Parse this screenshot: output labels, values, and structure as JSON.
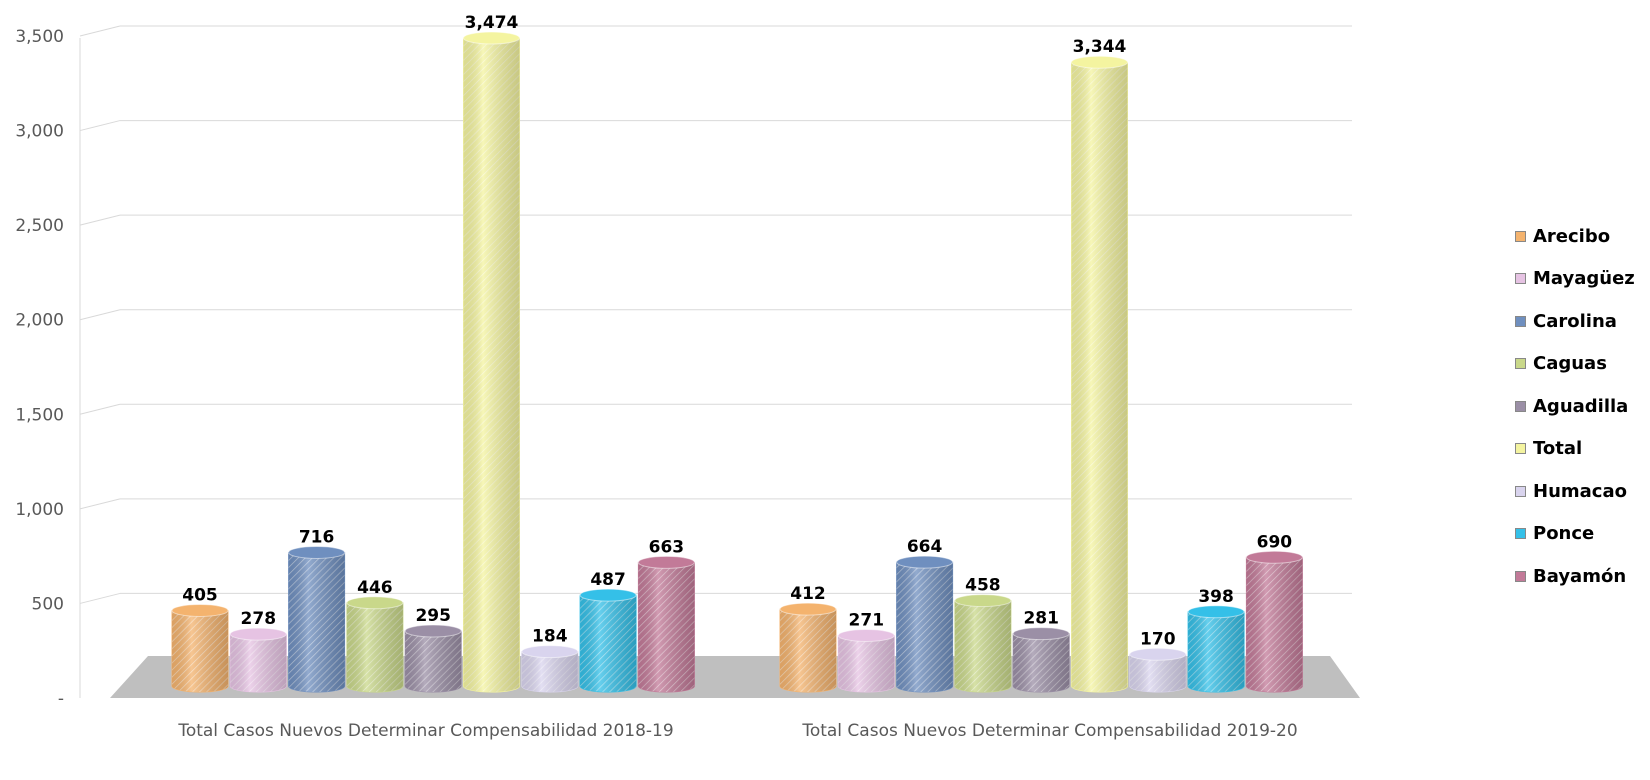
{
  "chart_data": {
    "type": "bar",
    "categories": [
      "Total Casos Nuevos Determinar Compensabilidad 2018-19",
      "Total Casos Nuevos Determinar Compensabilidad 2019-20"
    ],
    "series": [
      {
        "name": "Arecibo",
        "values": [
          405,
          412
        ],
        "color": "#F4B36E"
      },
      {
        "name": "Mayagüez",
        "values": [
          278,
          271
        ],
        "color": "#E6C3E3"
      },
      {
        "name": "Carolina",
        "values": [
          716,
          664
        ],
        "color": "#6F8FBF"
      },
      {
        "name": "Caguas",
        "values": [
          446,
          458
        ],
        "color": "#C9D88A"
      },
      {
        "name": "Aguadilla",
        "values": [
          295,
          281
        ],
        "color": "#9B8FA6"
      },
      {
        "name": "Total",
        "values": [
          3474,
          3344
        ],
        "color": "#F4F4A0"
      },
      {
        "name": "Humacao",
        "values": [
          184,
          170
        ],
        "color": "#D9D4EE"
      },
      {
        "name": "Ponce",
        "values": [
          487,
          398
        ],
        "color": "#34C0E8"
      },
      {
        "name": "Bayamón",
        "values": [
          663,
          690
        ],
        "color": "#C27A98"
      }
    ],
    "data_labels": {
      "Arecibo": [
        "405",
        "412"
      ],
      "Mayagüez": [
        "278",
        "271"
      ],
      "Carolina": [
        "716",
        "664"
      ],
      "Caguas": [
        "446",
        "458"
      ],
      "Aguadilla": [
        "295",
        "281"
      ],
      "Total": [
        "3,474",
        "3,344"
      ],
      "Humacao": [
        "184",
        "170"
      ],
      "Ponce": [
        "487",
        "398"
      ],
      "Bayamón": [
        "663",
        "690"
      ]
    },
    "yticks": [
      "-",
      "500",
      "1,000",
      "1,500",
      "2,000",
      "2,500",
      "3,000",
      "3,500"
    ],
    "ylim": [
      0,
      3500
    ],
    "grid": true,
    "legend_position": "right",
    "style": "3d-cylinder"
  }
}
